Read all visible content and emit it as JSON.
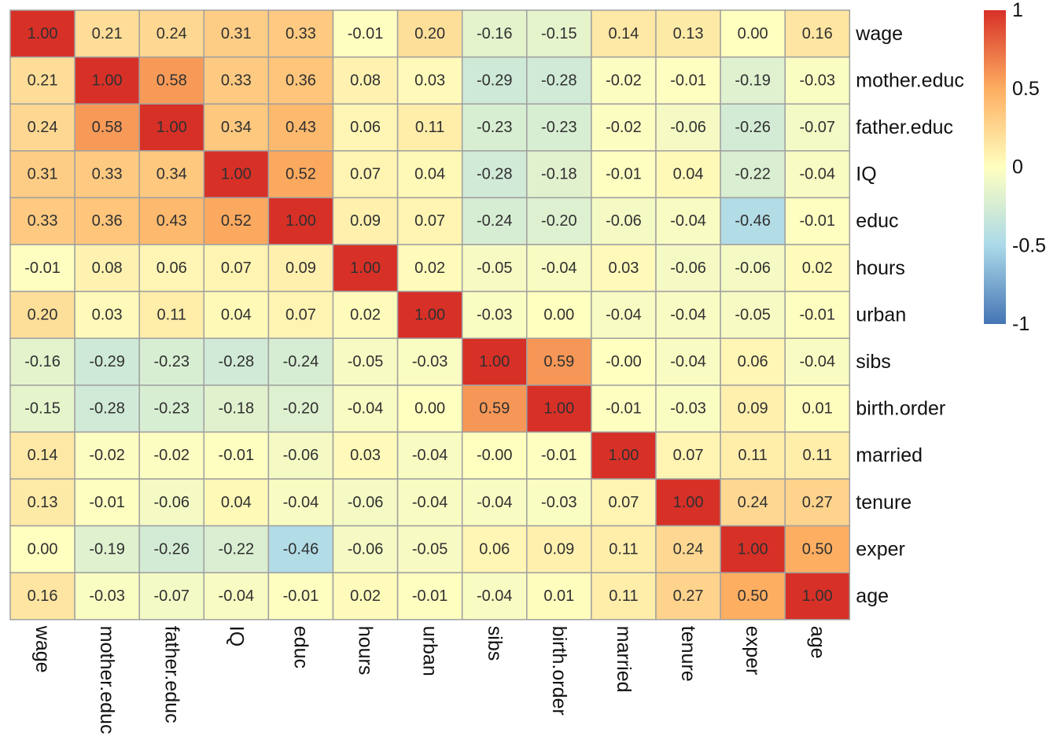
{
  "chart_data": {
    "type": "heatmap",
    "title": "",
    "xlabel": "",
    "ylabel": "",
    "variables": [
      "wage",
      "mother.educ",
      "father.educ",
      "IQ",
      "educ",
      "hours",
      "urban",
      "sibs",
      "birth.order",
      "married",
      "tenure",
      "exper",
      "age"
    ],
    "values": [
      [
        "1.00",
        "0.21",
        "0.24",
        "0.31",
        "0.33",
        "-0.01",
        "0.20",
        "-0.16",
        "-0.15",
        "0.14",
        "0.13",
        "0.00",
        "0.16"
      ],
      [
        "0.21",
        "1.00",
        "0.58",
        "0.33",
        "0.36",
        "0.08",
        "0.03",
        "-0.29",
        "-0.28",
        "-0.02",
        "-0.01",
        "-0.19",
        "-0.03"
      ],
      [
        "0.24",
        "0.58",
        "1.00",
        "0.34",
        "0.43",
        "0.06",
        "0.11",
        "-0.23",
        "-0.23",
        "-0.02",
        "-0.06",
        "-0.26",
        "-0.07"
      ],
      [
        "0.31",
        "0.33",
        "0.34",
        "1.00",
        "0.52",
        "0.07",
        "0.04",
        "-0.28",
        "-0.18",
        "-0.01",
        "0.04",
        "-0.22",
        "-0.04"
      ],
      [
        "0.33",
        "0.36",
        "0.43",
        "0.52",
        "1.00",
        "0.09",
        "0.07",
        "-0.24",
        "-0.20",
        "-0.06",
        "-0.04",
        "-0.46",
        "-0.01"
      ],
      [
        "-0.01",
        "0.08",
        "0.06",
        "0.07",
        "0.09",
        "1.00",
        "0.02",
        "-0.05",
        "-0.04",
        "0.03",
        "-0.06",
        "-0.06",
        "0.02"
      ],
      [
        "0.20",
        "0.03",
        "0.11",
        "0.04",
        "0.07",
        "0.02",
        "1.00",
        "-0.03",
        "0.00",
        "-0.04",
        "-0.04",
        "-0.05",
        "-0.01"
      ],
      [
        "-0.16",
        "-0.29",
        "-0.23",
        "-0.28",
        "-0.24",
        "-0.05",
        "-0.03",
        "1.00",
        "0.59",
        "-0.00",
        "-0.04",
        "0.06",
        "-0.04"
      ],
      [
        "-0.15",
        "-0.28",
        "-0.23",
        "-0.18",
        "-0.20",
        "-0.04",
        "0.00",
        "0.59",
        "1.00",
        "-0.01",
        "-0.03",
        "0.09",
        "0.01"
      ],
      [
        "0.14",
        "-0.02",
        "-0.02",
        "-0.01",
        "-0.06",
        "0.03",
        "-0.04",
        "-0.00",
        "-0.01",
        "1.00",
        "0.07",
        "0.11",
        "0.11"
      ],
      [
        "0.13",
        "-0.01",
        "-0.06",
        "0.04",
        "-0.04",
        "-0.06",
        "-0.04",
        "-0.04",
        "-0.03",
        "0.07",
        "1.00",
        "0.24",
        "0.27"
      ],
      [
        "0.00",
        "-0.19",
        "-0.26",
        "-0.22",
        "-0.46",
        "-0.06",
        "-0.05",
        "0.06",
        "0.09",
        "0.11",
        "0.24",
        "1.00",
        "0.50"
      ],
      [
        "0.16",
        "-0.03",
        "-0.07",
        "-0.04",
        "-0.01",
        "0.02",
        "-0.01",
        "-0.04",
        "0.01",
        "0.11",
        "0.27",
        "0.50",
        "1.00"
      ]
    ],
    "color_scale": {
      "domain": [
        -1,
        0,
        1
      ],
      "colors": [
        "#4575b4",
        "#ffffbf",
        "#d73027"
      ],
      "stops": [
        {
          "value": -1,
          "color": "#4575b4"
        },
        {
          "value": -0.5,
          "color": "#abd9e9"
        },
        {
          "value": 0,
          "color": "#ffffbf"
        },
        {
          "value": 0.5,
          "color": "#fdae61"
        },
        {
          "value": 1,
          "color": "#d73027"
        }
      ]
    },
    "legend": {
      "position": "top-right",
      "ticks": [
        "1",
        "0.5",
        "0",
        "-0.5",
        "-1"
      ],
      "tick_values": [
        1,
        0.5,
        0,
        -0.5,
        -1
      ]
    },
    "grid_color": "#a0a0a0"
  }
}
